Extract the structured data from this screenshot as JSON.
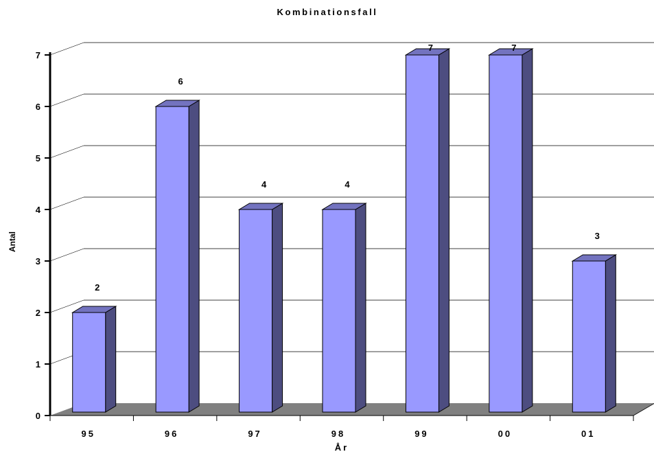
{
  "chart_data": {
    "type": "bar",
    "title": "Kombinationsfall",
    "xlabel": "År",
    "ylabel": "Antal",
    "categories": [
      "95",
      "96",
      "97",
      "98",
      "99",
      "00",
      "01"
    ],
    "values": [
      2,
      6,
      4,
      4,
      7,
      7,
      3
    ],
    "ylim": [
      0,
      7
    ],
    "yticks": [
      0,
      1,
      2,
      3,
      4,
      5,
      6,
      7
    ],
    "grid": true,
    "legend": "none",
    "colors": {
      "bar_front": "#9999ff",
      "bar_side": "#4d4d80",
      "bar_top": "#7373bf",
      "floor": "#808080",
      "grid": "#000000"
    }
  }
}
